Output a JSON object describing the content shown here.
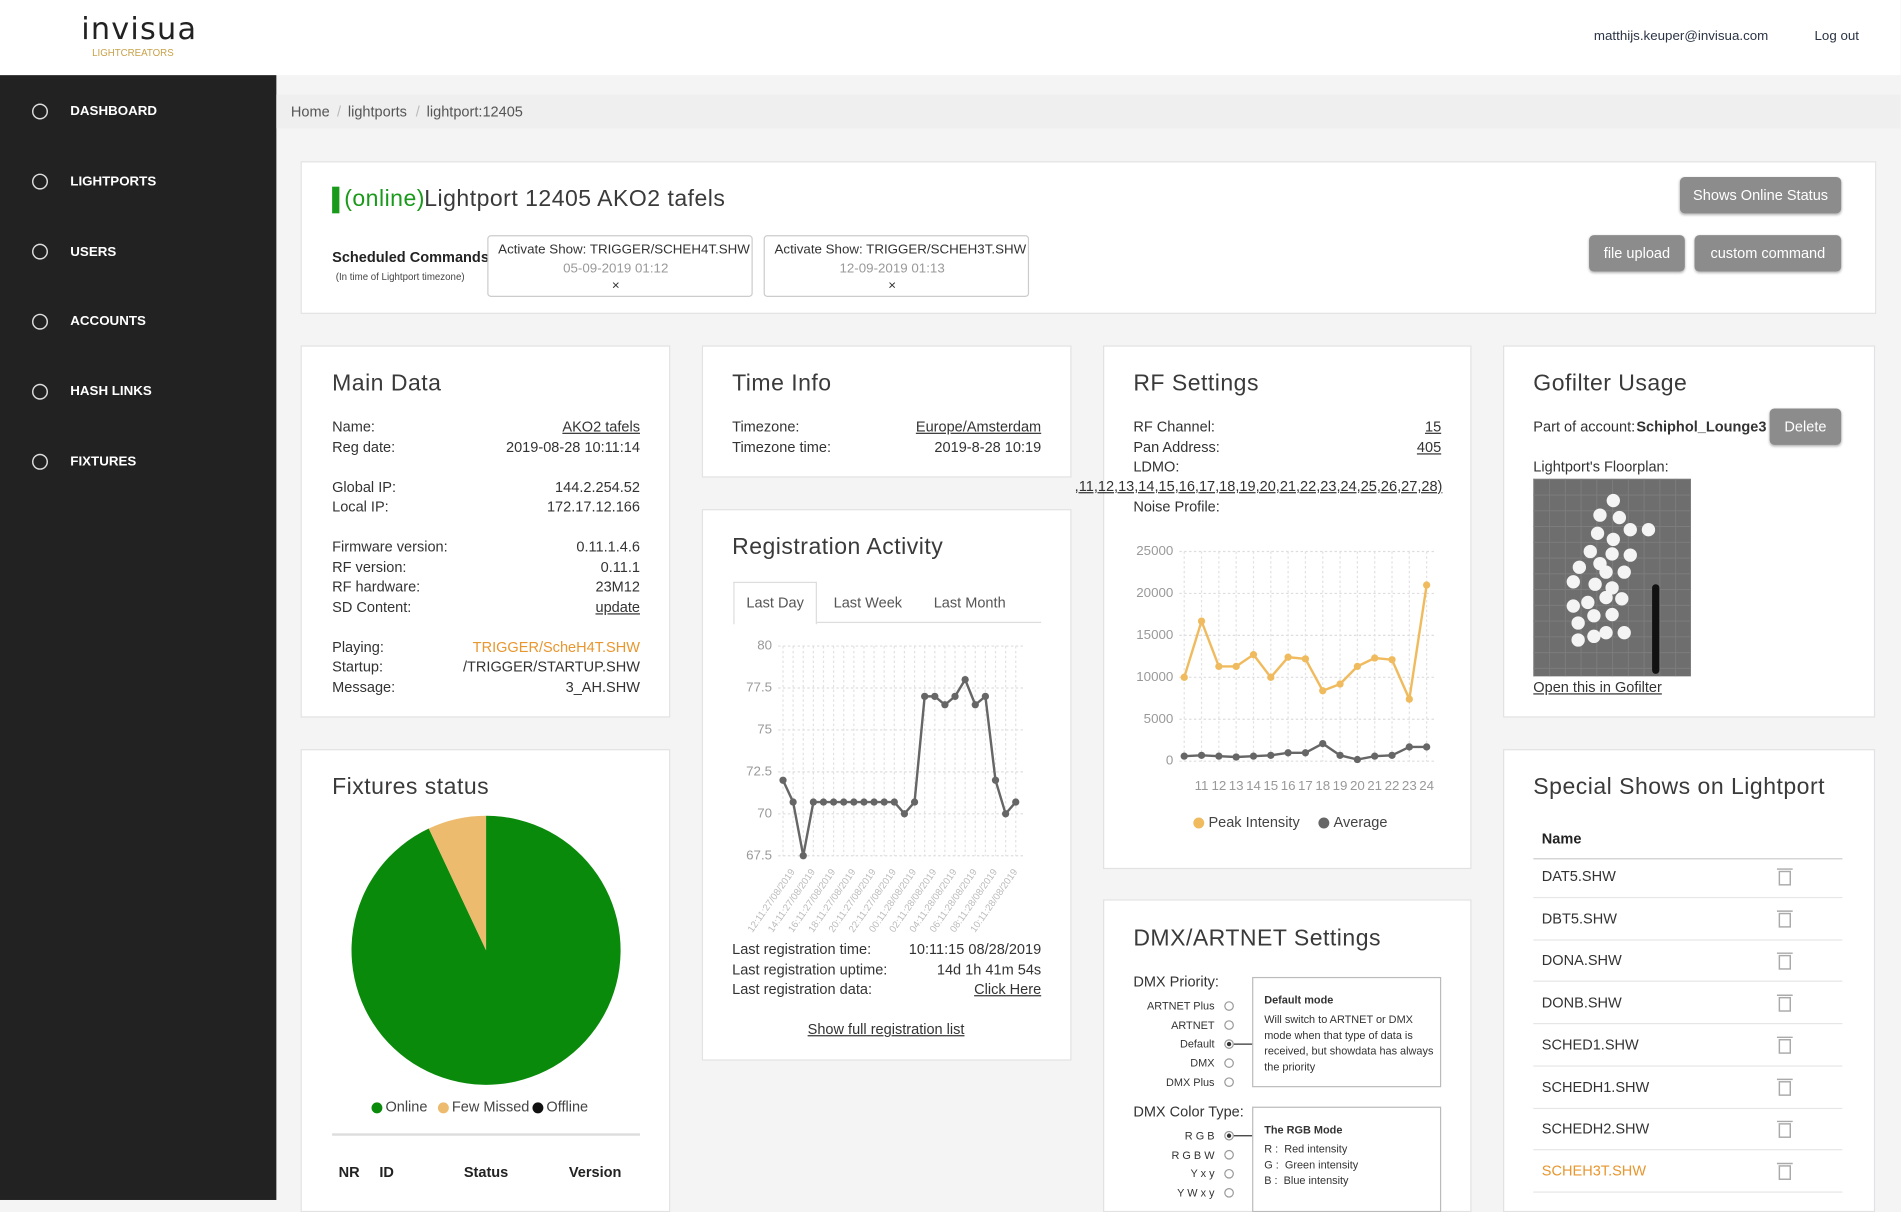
{
  "header": {
    "logo": "invisua",
    "logo_tagline": "LIGHTCREATORS",
    "user_email": "matthijs.keuper@invisua.com",
    "logout": "Log out"
  },
  "sidebar": [
    "DASHBOARD",
    "LIGHTPORTS",
    "USERS",
    "ACCOUNTS",
    "HASH LINKS",
    "FIXTURES"
  ],
  "breadcrumb": {
    "items": [
      "Home",
      "lightports",
      "lightport:12405"
    ],
    "separator": "/"
  },
  "lightport": {
    "status": "(online)",
    "title": "Lightport 12405 AKO2 tafels",
    "buttons": [
      "Shows Online Status",
      "file upload",
      "custom command"
    ],
    "scheduled_label": "Scheduled Commands:",
    "scheduled_note": "(In time of Lightport timezone)",
    "remove_symbol": "×",
    "scheduled": [
      {
        "command": "Activate Show: TRIGGER/SCHEH4T.SHW",
        "time": "05-09-2019 01:12"
      },
      {
        "command": "Activate Show: TRIGGER/SCHEH3T.SHW",
        "time": "12-09-2019 01:13"
      }
    ]
  },
  "main_data": {
    "title": "Main Data",
    "groups": [
      [
        {
          "label": "Name:",
          "value": "AKO2 tafels",
          "link": true
        },
        {
          "label": "Reg date:",
          "value": "2019-08-28 10:11:14"
        }
      ],
      [
        {
          "label": "Global IP:",
          "value": "144.2.254.52"
        },
        {
          "label": "Local IP:",
          "value": "172.17.12.166"
        }
      ],
      [
        {
          "label": "Firmware version:",
          "value": "0.11.1.4.6"
        },
        {
          "label": "RF version:",
          "value": "0.11.1"
        },
        {
          "label": "RF hardware:",
          "value": "23M12"
        },
        {
          "label": "SD Content:",
          "value": "update",
          "link": true
        }
      ],
      [
        {
          "label": "Playing:",
          "value": "TRIGGER/ScheH4T.SHW",
          "highlight": true
        },
        {
          "label": "Startup:",
          "value": "/TRIGGER/STARTUP.SHW"
        },
        {
          "label": "Message:",
          "value": "3_AH.SHW"
        }
      ]
    ]
  },
  "time_info": {
    "title": "Time Info",
    "rows": [
      {
        "label": "Timezone:",
        "value": "Europe/Amsterdam",
        "link": true
      },
      {
        "label": "Timezone time:",
        "value": "2019-8-28 10:19"
      }
    ]
  },
  "registration": {
    "title": "Registration Activity",
    "tabs": [
      "Last Day",
      "Last Week",
      "Last Month"
    ],
    "active_tab": 0,
    "chart": {
      "type": "line",
      "color": "#666666",
      "categories": [
        null,
        "12:11:27/08/2019",
        null,
        "14:11:27/08/2019",
        null,
        "16:11:27/08/2019",
        null,
        "18:11:27/08/2019",
        null,
        "20:11:27/08/2019",
        null,
        "22:11:27/08/2019",
        null,
        "00:11:28/08/2019",
        null,
        "02:11:28/08/2019",
        null,
        "04:11:28/08/2019",
        null,
        "06:11:28/08/2019",
        null,
        "08:11:28/08/2019",
        null,
        "10:11:28/08/2019"
      ],
      "values": [
        72,
        70.7,
        67.5,
        70.7,
        70.7,
        70.7,
        70.7,
        70.7,
        70.7,
        70.7,
        70.7,
        70.7,
        70,
        70.7,
        77,
        77,
        76.5,
        77,
        78,
        76.5,
        77,
        72,
        70,
        70.7
      ],
      "ylim": [
        67.5,
        80
      ],
      "yticks": [
        67.5,
        70,
        72.5,
        75,
        77.5,
        80
      ],
      "grid": true
    },
    "rows": [
      {
        "label": "Last registration time:",
        "value": "10:11:15 08/28/2019"
      },
      {
        "label": "Last registration uptime:",
        "value": "14d 1h 41m 54s"
      },
      {
        "label": "Last registration data:",
        "value": "Click Here",
        "link": true
      }
    ],
    "full_list_link": "Show full registration list"
  },
  "rf_settings": {
    "title": "RF Settings",
    "rows": [
      {
        "label": "RF Channel:",
        "value": "15",
        "link": true
      },
      {
        "label": "Pan Address:",
        "value": "405",
        "link": true
      },
      {
        "label": "LDMO:",
        "value": ",11,12,13,14,15,16,17,18,19,20,21,22,23,24,25,26,27,28)",
        "link": true
      }
    ],
    "noise_label": "Noise Profile:",
    "chart": {
      "type": "line",
      "categories": [
        null,
        "11",
        "12",
        "13",
        "14",
        "15",
        "16",
        "17",
        "18",
        "19",
        "20",
        "21",
        "22",
        "23",
        "24"
      ],
      "series": [
        {
          "name": "Peak Intensity",
          "color": "#f0bb5e",
          "values": [
            10000,
            16700,
            11300,
            11300,
            12700,
            10000,
            12400,
            12200,
            8400,
            9200,
            11300,
            12300,
            12100,
            7400,
            21000
          ]
        },
        {
          "name": "Average",
          "color": "#666666",
          "values": [
            600,
            700,
            600,
            500,
            600,
            700,
            1000,
            1000,
            2100,
            700,
            200,
            600,
            700,
            1700,
            1700
          ]
        }
      ],
      "ylim": [
        0,
        25000
      ],
      "yticks": [
        0,
        5000,
        10000,
        15000,
        20000,
        25000
      ],
      "grid": true,
      "legend": "bottom"
    }
  },
  "fixtures": {
    "title": "Fixtures status",
    "chart": {
      "type": "pie",
      "categories": [
        "Online",
        "Few Missed",
        "Offline"
      ],
      "values": [
        93,
        7,
        0
      ],
      "colors": [
        "#0a8a0a",
        "#ecbb6e",
        "#111111"
      ],
      "legend": "bottom"
    },
    "table_headers": [
      "NR",
      "ID",
      "Status",
      "Version"
    ]
  },
  "dmx": {
    "title": "DMX/ARTNET Settings",
    "priority": {
      "label": "DMX Priority:",
      "options": [
        "ARTNET Plus",
        "ARTNET",
        "Default",
        "DMX",
        "DMX Plus"
      ],
      "selected": 2,
      "box_title": "Default mode",
      "box_text": "Will switch to ARTNET or DMX mode when that type of data is received, but showdata has always the priority"
    },
    "color_type": {
      "label": "DMX Color Type:",
      "options": [
        "R G B",
        "R G B W",
        "Y x y",
        "Y W x y"
      ],
      "selected": 0,
      "box_title": "The RGB Mode",
      "box_lines": [
        "R :  Red intensity",
        "G :  Green intensity",
        "B :  Blue intensity"
      ]
    }
  },
  "gofilter": {
    "title": "Gofilter Usage",
    "account_label": "Part of account:",
    "account": "Schiphol_Lounge3",
    "delete": "Delete",
    "floorplan_label": "Lightport's Floorplan:",
    "open_link": "Open this in Gofilter"
  },
  "special_shows": {
    "title": "Special Shows on Lightport",
    "column": "Name",
    "shows": [
      "DAT5.SHW",
      "DBT5.SHW",
      "DONA.SHW",
      "DONB.SHW",
      "SCHED1.SHW",
      "SCHEDH1.SHW",
      "SCHEDH2.SHW",
      "SCHEH3T.SHW"
    ],
    "active": 7
  }
}
